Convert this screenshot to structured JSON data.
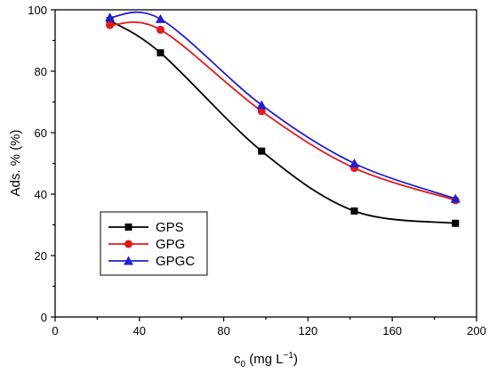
{
  "chart_data": {
    "type": "line",
    "xlabel": {
      "main": "c",
      "sub": "0",
      "rest1": " (mg L",
      "sup": "−1",
      "rest2": ")"
    },
    "ylabel": "Ads. % (%)",
    "xlim": [
      0,
      200
    ],
    "ylim": [
      0,
      100
    ],
    "xticks": [
      "0",
      "40",
      "80",
      "120",
      "160",
      "200"
    ],
    "yticks": [
      "0",
      "20",
      "40",
      "60",
      "80",
      "100"
    ],
    "grid": false,
    "legend_position": "bottom-left",
    "series": [
      {
        "name": "GPS",
        "color": "#000000",
        "marker": "square",
        "x": [
          26,
          50,
          98,
          142,
          190
        ],
        "y": [
          96.5,
          86,
          54,
          34.5,
          30.5
        ]
      },
      {
        "name": "GPG",
        "color": "#e31a1c",
        "marker": "circle",
        "x": [
          26,
          50,
          98,
          142,
          190
        ],
        "y": [
          95,
          93.5,
          67,
          48.5,
          38
        ]
      },
      {
        "name": "GPGC",
        "color": "#1f1fd6",
        "marker": "triangle",
        "x": [
          26,
          50,
          98,
          142,
          190
        ],
        "y": [
          97.5,
          97,
          69,
          50,
          38.5
        ]
      }
    ]
  }
}
